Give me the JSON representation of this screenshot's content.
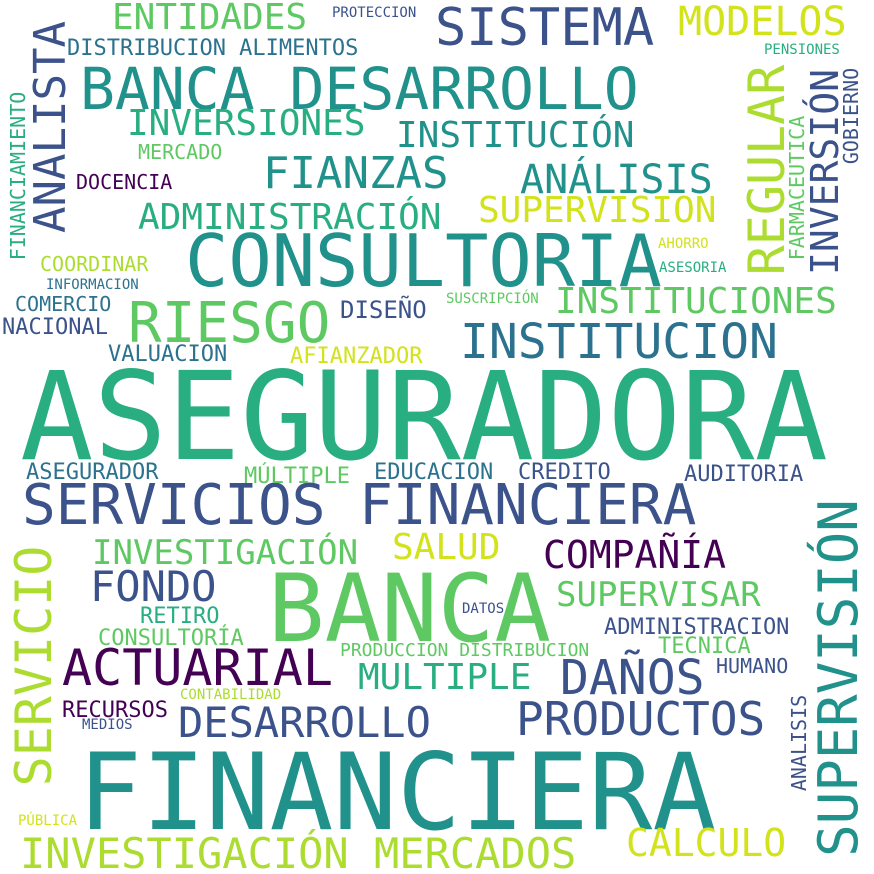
{
  "palette": {
    "background": "#ffffff",
    "colors": [
      "#440154",
      "#3b528b",
      "#2c728e",
      "#21918c",
      "#28ae80",
      "#5ec962",
      "#addc30",
      "#d2e21b"
    ]
  },
  "words": [
    {
      "text": "ASEGURADORA",
      "color": "#28ae80"
    },
    {
      "text": "FINANCIERA",
      "color": "#21918c"
    },
    {
      "text": "BANCA",
      "color": "#5ec962"
    },
    {
      "text": "CONSULTORIA",
      "color": "#21918c"
    },
    {
      "text": "BANCA DESARROLLO",
      "color": "#21918c"
    },
    {
      "text": "SERVICIOS FINANCIERA",
      "color": "#3b528b"
    },
    {
      "text": "SISTEMA",
      "color": "#3b528b"
    },
    {
      "text": "SUPERVISIÓN",
      "color": "#21918c"
    },
    {
      "text": "SERVICIO",
      "color": "#addc30"
    },
    {
      "text": "ACTUARIAL",
      "color": "#440154"
    },
    {
      "text": "RIESGO",
      "color": "#5ec962"
    },
    {
      "text": "INVESTIGACIÓN MERCADOS",
      "color": "#addc30"
    },
    {
      "text": "MODELOS",
      "color": "#d2e21b"
    },
    {
      "text": "REGULAR",
      "color": "#addc30"
    },
    {
      "text": "ANALISTA",
      "color": "#3b528b"
    },
    {
      "text": "INSTITUCION",
      "color": "#2c728e"
    },
    {
      "text": "PRODUCTOS",
      "color": "#3b528b"
    },
    {
      "text": "DESARROLLO",
      "color": "#3b528b"
    },
    {
      "text": "DAÑOS",
      "color": "#3b528b"
    },
    {
      "text": "FIANZAS",
      "color": "#21918c"
    },
    {
      "text": "INVERSIÓN",
      "color": "#3b528b"
    },
    {
      "text": "ENTIDADES",
      "color": "#5ec962"
    },
    {
      "text": "INSTITUCIÓN",
      "color": "#21918c"
    },
    {
      "text": "INVERSIONES",
      "color": "#28ae80"
    },
    {
      "text": "ANÁLISIS",
      "color": "#21918c"
    },
    {
      "text": "ADMINISTRACIÓN",
      "color": "#28ae80"
    },
    {
      "text": "SUPERVISION",
      "color": "#d2e21b"
    },
    {
      "text": "INSTITUCIONES",
      "color": "#5ec962"
    },
    {
      "text": "FONDO",
      "color": "#3b528b"
    },
    {
      "text": "COMPAÑÍA",
      "color": "#440154"
    },
    {
      "text": "INVESTIGACIÓN",
      "color": "#5ec962"
    },
    {
      "text": "SALUD",
      "color": "#d2e21b"
    },
    {
      "text": "SUPERVISAR",
      "color": "#5ec962"
    },
    {
      "text": "MULTIPLE",
      "color": "#28ae80"
    },
    {
      "text": "CALCULO",
      "color": "#d2e21b"
    },
    {
      "text": "DISTRIBUCION ALIMENTOS",
      "color": "#2c728e"
    },
    {
      "text": "PROTECCION",
      "color": "#3b528b"
    },
    {
      "text": "PENSIONES",
      "color": "#28ae80"
    },
    {
      "text": "FINANCIAMIENTO",
      "color": "#28ae80"
    },
    {
      "text": "MERCADO",
      "color": "#5ec962"
    },
    {
      "text": "DOCENCIA",
      "color": "#440154"
    },
    {
      "text": "GOBIERNO",
      "color": "#3b528b"
    },
    {
      "text": "FARMACEUTICA",
      "color": "#5ec962"
    },
    {
      "text": "AHORRO",
      "color": "#d2e21b"
    },
    {
      "text": "ASESORIA",
      "color": "#28ae80"
    },
    {
      "text": "COORDINAR",
      "color": "#addc30"
    },
    {
      "text": "INFORMACION",
      "color": "#2c728e"
    },
    {
      "text": "COMERCIO",
      "color": "#2c728e"
    },
    {
      "text": "NACIONAL",
      "color": "#3b528b"
    },
    {
      "text": "DISEÑO",
      "color": "#3b528b"
    },
    {
      "text": "SUSCRIPCIÓN",
      "color": "#5ec962"
    },
    {
      "text": "VALUACION",
      "color": "#2c728e"
    },
    {
      "text": "AFIANZADOR",
      "color": "#d2e21b"
    },
    {
      "text": "ASEGURADOR",
      "color": "#2c728e"
    },
    {
      "text": "MÚLTIPLE",
      "color": "#5ec962"
    },
    {
      "text": "EDUCACION",
      "color": "#2c728e"
    },
    {
      "text": "CREDITO",
      "color": "#3b528b"
    },
    {
      "text": "AUDITORIA",
      "color": "#3b528b"
    },
    {
      "text": "RETIRO",
      "color": "#28ae80"
    },
    {
      "text": "DATOS",
      "color": "#3b528b"
    },
    {
      "text": "ADMINISTRACION",
      "color": "#3b528b"
    },
    {
      "text": "CONSULTORÍA",
      "color": "#5ec962"
    },
    {
      "text": "PRODUCCION DISTRIBUCION",
      "color": "#5ec962"
    },
    {
      "text": "TECNICA",
      "color": "#5ec962"
    },
    {
      "text": "HUMANO",
      "color": "#3b528b"
    },
    {
      "text": "CONTABILIDAD",
      "color": "#addc30"
    },
    {
      "text": "RECURSOS",
      "color": "#440154"
    },
    {
      "text": "MEDIOS",
      "color": "#3b528b"
    },
    {
      "text": "ANALISIS",
      "color": "#3b528b"
    },
    {
      "text": "PÚBLICA",
      "color": "#d2e21b"
    }
  ]
}
